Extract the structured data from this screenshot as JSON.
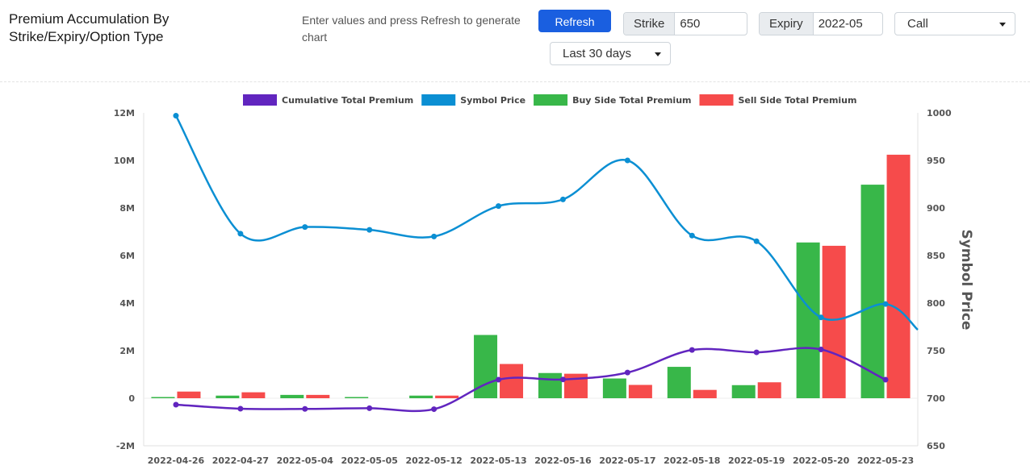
{
  "header": {
    "title": "Premium Accumulation By Strike/Expiry/Option Type",
    "hint": "Enter values and press Refresh to generate chart",
    "refresh_label": "Refresh",
    "strike_label": "Strike",
    "strike_value": "650",
    "expiry_label": "Expiry",
    "expiry_value": "2022-05",
    "option_type": "Call",
    "period": "Last 30 days"
  },
  "icons": {
    "dropdown": "chevron-down-icon"
  },
  "chart_data": {
    "type": "bar",
    "categories": [
      "2022-04-26",
      "2022-04-27",
      "2022-05-04",
      "2022-05-05",
      "2022-05-12",
      "2022-05-13",
      "2022-05-16",
      "2022-05-17",
      "2022-05-18",
      "2022-05-19",
      "2022-05-20",
      "2022-05-23"
    ],
    "ylim": [
      -2000000,
      12000000
    ],
    "yticks": [
      -2000000,
      0,
      2000000,
      4000000,
      6000000,
      8000000,
      10000000,
      12000000
    ],
    "ytick_labels": [
      "-2M",
      "0",
      "2M",
      "4M",
      "6M",
      "8M",
      "10M",
      "12M"
    ],
    "y2lim": [
      650,
      1000
    ],
    "y2ticks": [
      650,
      700,
      750,
      800,
      850,
      900,
      950,
      1000
    ],
    "y2tick_labels": [
      "650",
      "700",
      "750",
      "800",
      "850",
      "900",
      "950",
      "1000"
    ],
    "y2label": "Symbol Price",
    "grid": false,
    "legend_position": "top",
    "series": [
      {
        "name": "Cumulative Total Premium",
        "type": "line",
        "axis": "left",
        "color": "#6125bf",
        "values": [
          -270000,
          -440000,
          -450000,
          -420000,
          -460000,
          780000,
          790000,
          1080000,
          2030000,
          1930000,
          2050000,
          780000
        ]
      },
      {
        "name": "Symbol Price",
        "type": "line",
        "axis": "right",
        "color": "#0b8fd3",
        "values": [
          997,
          873,
          880,
          877,
          870,
          902,
          909,
          950,
          871,
          865,
          785,
          799
        ]
      },
      {
        "name": "Buy Side Total Premium",
        "type": "bar",
        "axis": "left",
        "color": "#38b749",
        "values": [
          30000,
          110000,
          140000,
          30000,
          110000,
          2660000,
          1060000,
          830000,
          1320000,
          550000,
          6550000,
          8980000
        ]
      },
      {
        "name": "Sell Side Total Premium",
        "type": "bar",
        "axis": "left",
        "color": "#f64b4b",
        "values": [
          280000,
          250000,
          140000,
          0,
          110000,
          1440000,
          1030000,
          560000,
          350000,
          670000,
          6410000,
          10240000
        ]
      }
    ],
    "symbol_price_trailing": 772
  }
}
